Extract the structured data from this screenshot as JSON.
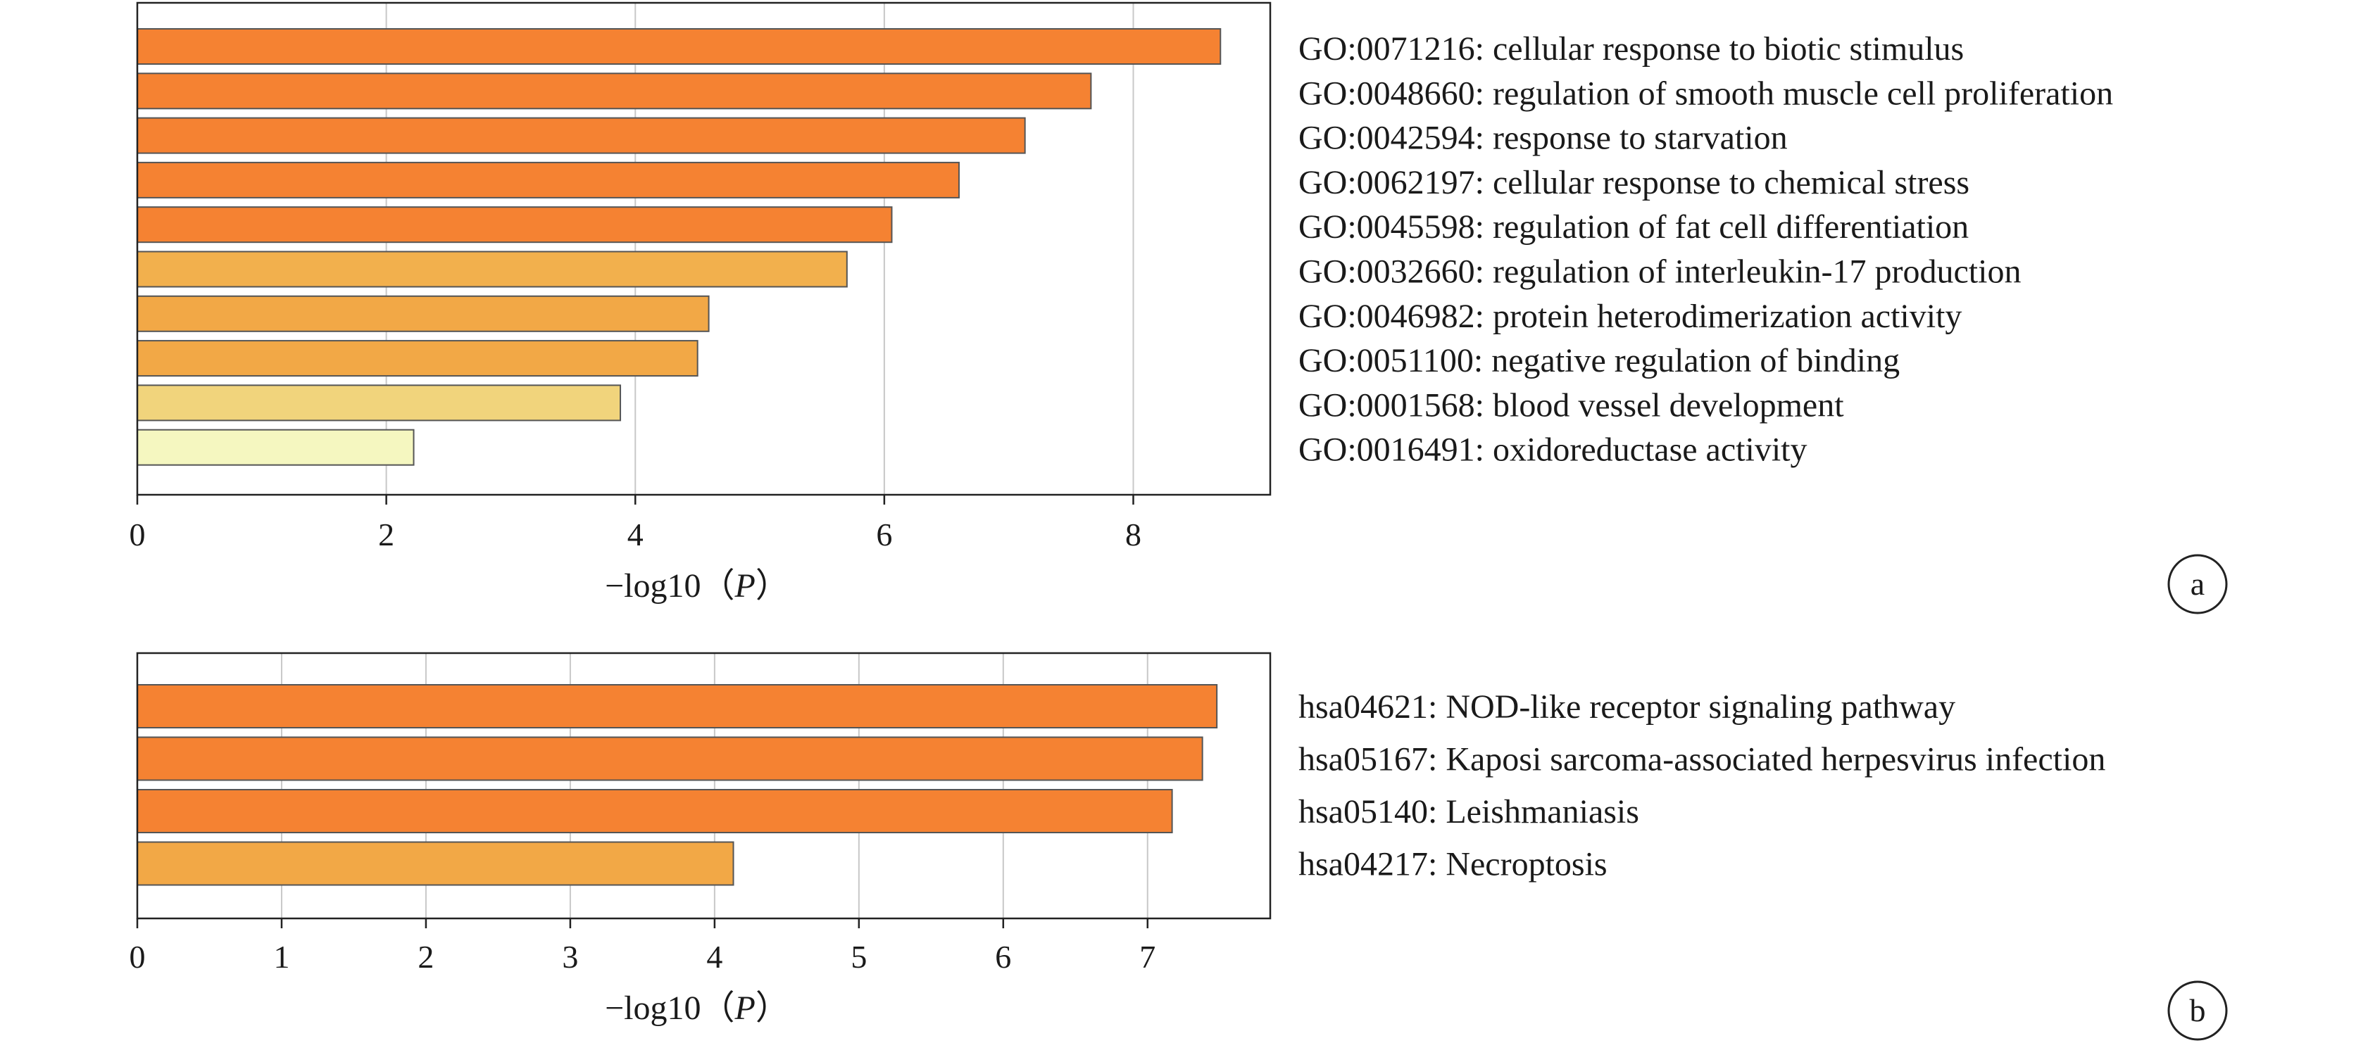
{
  "chart_data": [
    {
      "panel": "a",
      "type": "bar",
      "orientation": "horizontal",
      "xlabel": "−log10（P）",
      "xlabel_italic": "P",
      "xlim": [
        0,
        9.1
      ],
      "xticks": [
        0,
        2,
        4,
        6,
        8
      ],
      "grid": "vertical",
      "categories": [
        "GO:0071216: cellular response to biotic stimulus",
        "GO:0048660: regulation of smooth muscle cell proliferation",
        "GO:0042594: response to starvation",
        "GO:0062197: cellular response to chemical stress",
        "GO:0045598: regulation of fat cell differentiation",
        "GO:0032660: regulation of interleukin-17 production",
        "GO:0046982: protein heterodimerization activity",
        "GO:0051100: negative regulation of binding",
        "GO:0001568: blood vessel development",
        "GO:0016491: oxidoreductase activity"
      ],
      "values": [
        8.7,
        7.66,
        7.13,
        6.6,
        6.06,
        5.7,
        4.59,
        4.5,
        3.88,
        2.22
      ],
      "colors": [
        "#f58232",
        "#f58232",
        "#f58232",
        "#f58232",
        "#f58232",
        "#f2b04d",
        "#f2a846",
        "#f2a846",
        "#f1d47c",
        "#f5f7c0"
      ]
    },
    {
      "panel": "b",
      "type": "bar",
      "orientation": "horizontal",
      "xlabel": "−log10（P）",
      "xlabel_italic": "P",
      "xlim": [
        0,
        7.85
      ],
      "xticks": [
        0,
        1,
        2,
        3,
        4,
        5,
        6,
        7
      ],
      "grid": "vertical",
      "categories": [
        "hsa04621: NOD-like receptor signaling pathway",
        "hsa05167: Kaposi sarcoma-associated herpesvirus infection",
        "hsa05140: Leishmaniasis",
        "hsa04217: Necroptosis"
      ],
      "values": [
        7.48,
        7.38,
        7.17,
        4.13
      ],
      "colors": [
        "#f58232",
        "#f58232",
        "#f58232",
        "#f2a846"
      ]
    }
  ]
}
